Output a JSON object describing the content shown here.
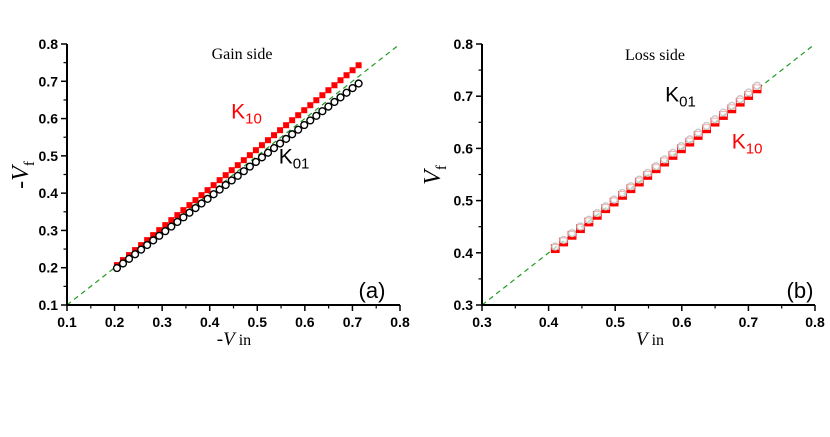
{
  "chart_data": [
    {
      "type": "scatter",
      "panel_label": "(a)",
      "title": "Gain side",
      "xlabel": "-V in",
      "ylabel": "-V f",
      "xlim": [
        0.1,
        0.8
      ],
      "ylim": [
        0.1,
        0.8
      ],
      "xticks": [
        "0.1",
        "0.2",
        "0.3",
        "0.4",
        "0.5",
        "0.6",
        "0.7",
        "0.8"
      ],
      "yticks": [
        "0.1",
        "0.2",
        "0.3",
        "0.4",
        "0.5",
        "0.6",
        "0.7",
        "0.8"
      ],
      "grid": false,
      "reference_line": {
        "name": "y = x",
        "style": "dashed",
        "color": "#1f9a1f"
      },
      "series": [
        {
          "name": "K10",
          "marker": "filled-square",
          "color": "#ff0000",
          "x_start": 0.205,
          "x_end": 0.713,
          "n": 41,
          "y_start": 0.207,
          "y_end": 0.743
        },
        {
          "name": "K01",
          "marker": "open-circle",
          "color": "#000000",
          "x_start": 0.205,
          "x_end": 0.713,
          "n": 41,
          "y_start": 0.199,
          "y_end": 0.694
        }
      ],
      "annotations": [
        {
          "text": "K10",
          "base": "K",
          "sub": "10",
          "color": "#ff0000",
          "x": 0.445,
          "y": 0.6
        },
        {
          "text": "K01",
          "base": "K",
          "sub": "01",
          "color": "#000000",
          "x": 0.545,
          "y": 0.48
        }
      ]
    },
    {
      "type": "scatter",
      "panel_label": "(b)",
      "title": "Loss side",
      "xlabel": "V in",
      "ylabel": "V f",
      "xlim": [
        0.3,
        0.8
      ],
      "ylim": [
        0.3,
        0.8
      ],
      "xticks": [
        "0.3",
        "0.4",
        "0.5",
        "0.6",
        "0.7",
        "0.8"
      ],
      "yticks": [
        "0.3",
        "0.4",
        "0.5",
        "0.6",
        "0.7",
        "0.8"
      ],
      "grid": false,
      "reference_line": {
        "name": "y = x",
        "style": "dashed",
        "color": "#1f9a1f"
      },
      "series": [
        {
          "name": "K10",
          "marker": "half-filled-square",
          "color": "#ff0000",
          "x_start": 0.41,
          "x_end": 0.713,
          "n": 25,
          "y_start": 0.408,
          "y_end": 0.714
        },
        {
          "name": "K01",
          "marker": "open-circle",
          "color": "#c8c8c8",
          "x_start": 0.41,
          "x_end": 0.713,
          "n": 25,
          "y_start": 0.412,
          "y_end": 0.72
        }
      ],
      "annotations": [
        {
          "text": "K01",
          "base": "K",
          "sub": "01",
          "color": "#000000",
          "x": 0.575,
          "y": 0.69
        },
        {
          "text": "K10",
          "base": "K",
          "sub": "10",
          "color": "#ff0000",
          "x": 0.675,
          "y": 0.6
        }
      ]
    }
  ],
  "panels": {
    "a": {
      "title": "Gain side",
      "label": "(a)",
      "xlabel_sign": "-",
      "xlabel_var": "V",
      "xlabel_sub": " in",
      "ylabel_sign": "-",
      "ylabel_var": "V",
      "ylabel_sub": "f"
    },
    "b": {
      "title": "Loss side",
      "label": "(b)",
      "xlabel_sign": "",
      "xlabel_var": "V",
      "xlabel_sub": " in",
      "ylabel_sign": "",
      "ylabel_var": "V",
      "ylabel_sub": "f"
    }
  }
}
